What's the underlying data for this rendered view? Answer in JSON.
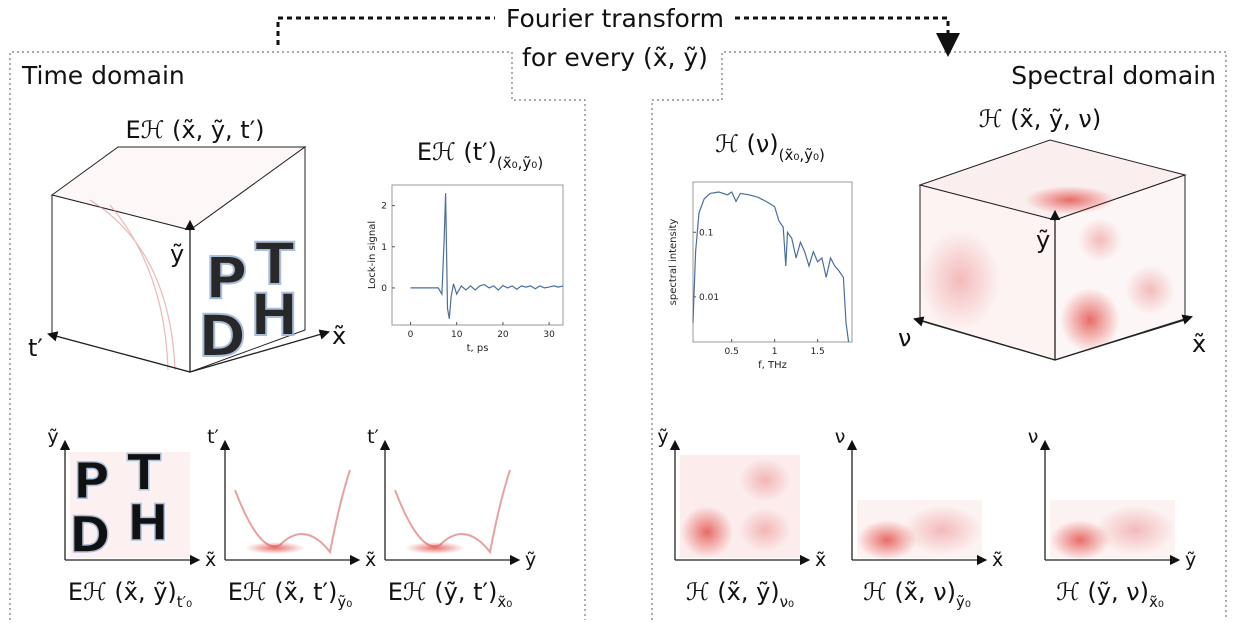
{
  "figure": {
    "arrow_label_line1": "Fourier transform",
    "arrow_label_line2": "for every (x̃, ỹ)",
    "left": {
      "title": "Time domain",
      "cube_label": "Eℋ (x̃, ỹ, t′)",
      "cube_axes": [
        "ỹ",
        "t′",
        "x̃"
      ],
      "plots": [
        {
          "x_axis": "x̃",
          "y_axis": "ỹ",
          "caption": "Eℋ (x̃, ỹ)",
          "caption_sub": "t′₀"
        },
        {
          "x_axis": "x̃",
          "y_axis": "t′",
          "caption": "Eℋ (x̃, t′)",
          "caption_sub": "ỹ₀"
        },
        {
          "x_axis": "ỹ",
          "y_axis": "t′",
          "caption": "Eℋ (ỹ, t′)",
          "caption_sub": "x̃₀"
        }
      ]
    },
    "right": {
      "title": "Spectral domain",
      "cube_label": "ℋ (x̃, ỹ, ν)",
      "cube_axes": [
        "ỹ",
        "ν",
        "x̃"
      ],
      "plots": [
        {
          "x_axis": "x̃",
          "y_axis": "ỹ",
          "caption": "ℋ (x̃, ỹ)",
          "caption_sub": "ν₀"
        },
        {
          "x_axis": "x̃",
          "y_axis": "ν",
          "caption": "ℋ (x̃, ν)",
          "caption_sub": "ỹ₀"
        },
        {
          "x_axis": "ỹ",
          "y_axis": "ν",
          "caption": "ℋ (ỹ, ν)",
          "caption_sub": "x̃₀"
        }
      ]
    }
  },
  "chart_data": [
    {
      "type": "line",
      "title": "Eℋ (t′)",
      "title_sub": "(x̃₀,ỹ₀)",
      "x_label": "t, ps",
      "y_label": "Lock-in signal",
      "color": "#4a6f9c",
      "x": [
        0,
        2,
        4,
        6,
        6.8,
        7.3,
        7.6,
        8,
        8.4,
        8.8,
        9.3,
        10,
        11,
        12,
        13,
        14,
        15,
        16,
        17,
        18,
        19,
        20,
        21,
        22,
        23,
        24,
        25,
        26,
        27,
        28,
        29,
        30,
        31,
        32,
        33
      ],
      "values": [
        0,
        0,
        0,
        0,
        -0.15,
        1.2,
        2.3,
        -0.5,
        -0.75,
        -0.2,
        0.1,
        -0.15,
        0.05,
        -0.05,
        0.05,
        -0.05,
        0.05,
        0.08,
        0,
        0.05,
        -0.05,
        0.06,
        0,
        0.05,
        -0.03,
        0.05,
        0.02,
        0.05,
        -0.02,
        0.05,
        0,
        0.02,
        0.05,
        0.02,
        0.05
      ],
      "xlim": [
        -4,
        33
      ],
      "ylim": [
        -0.9,
        2.5
      ],
      "xticks": [
        0,
        10,
        20,
        30
      ],
      "yticks": [
        0,
        1,
        2
      ]
    },
    {
      "type": "line",
      "title": "ℋ (ν)",
      "title_sub": "(x̃₀,ỹ₀)",
      "x_label": "f, THz",
      "y_label": "spectral intensity",
      "color": "#4a6f9c",
      "log_y": true,
      "x": [
        0.05,
        0.08,
        0.12,
        0.18,
        0.25,
        0.35,
        0.45,
        0.5,
        0.55,
        0.6,
        0.7,
        0.8,
        0.9,
        1.0,
        1.05,
        1.1,
        1.13,
        1.15,
        1.2,
        1.25,
        1.3,
        1.35,
        1.4,
        1.45,
        1.5,
        1.55,
        1.6,
        1.65,
        1.7,
        1.75,
        1.8,
        1.83,
        1.86
      ],
      "values": [
        0.004,
        0.05,
        0.2,
        0.33,
        0.4,
        0.42,
        0.38,
        0.42,
        0.3,
        0.4,
        0.38,
        0.35,
        0.3,
        0.25,
        0.15,
        0.12,
        0.03,
        0.1,
        0.08,
        0.04,
        0.07,
        0.05,
        0.03,
        0.05,
        0.035,
        0.04,
        0.02,
        0.04,
        0.03,
        0.025,
        0.02,
        0.004,
        0.002
      ],
      "xlim": [
        0.05,
        1.9
      ],
      "ylim": [
        0.002,
        0.6
      ],
      "xticks": [
        0.5,
        1,
        1.5
      ],
      "yticks": [
        0.01,
        0.1
      ]
    }
  ]
}
